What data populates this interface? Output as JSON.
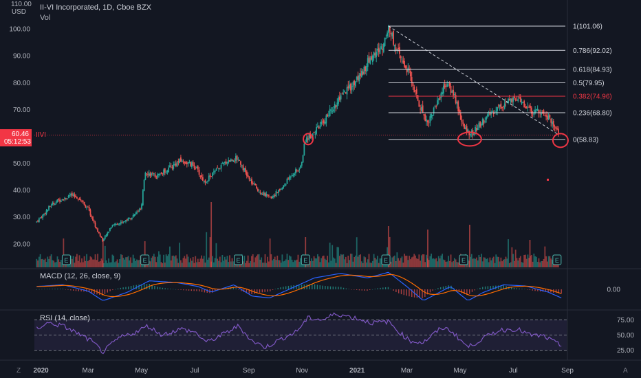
{
  "header": {
    "title": "II-VI Incorporated, 1D, Cboe BZX",
    "vol_label": "Vol",
    "currency_top": "110.00",
    "currency": "USD"
  },
  "price_tag": {
    "price": "60.46",
    "countdown": "05:12:53",
    "symbol": "IIVI"
  },
  "indicators": {
    "macd": {
      "label": "MACD (12, 26, close, 9)",
      "level_label": "0.00"
    },
    "rsi": {
      "label": "RSI (14, close)",
      "levels": [
        "75.00",
        "50.00",
        "25.00"
      ]
    }
  },
  "bottom_letters": {
    "left": "Z",
    "right": "A"
  },
  "colors": {
    "background": "#131722",
    "up": "#26a69a",
    "down": "#ef5350",
    "fib_line": "#d1d4dc",
    "fib_382": "#f23645",
    "circle": "#f23645",
    "rsi": "#7e57c2",
    "macd": "#2962ff",
    "signal": "#ff6d00"
  },
  "chart_data": {
    "type": "candlestick",
    "title": "II-VI Incorporated, 1D, Cboe BZX",
    "y_ticks": [
      "20.00",
      "30.00",
      "40.00",
      "50.00",
      "60.00",
      "70.00",
      "80.00",
      "90.00",
      "100.00"
    ],
    "ylim": [
      11,
      110
    ],
    "x_ticks": [
      "2020",
      "Mar",
      "May",
      "Jul",
      "Sep",
      "Nov",
      "2021",
      "Mar",
      "May",
      "Jul",
      "Sep"
    ],
    "price_path": [
      [
        "2020-01-01",
        28
      ],
      [
        "2020-01-10",
        31
      ],
      [
        "2020-01-20",
        35
      ],
      [
        "2020-02-01",
        37
      ],
      [
        "2020-02-10",
        38
      ],
      [
        "2020-02-20",
        37
      ],
      [
        "2020-03-01",
        33
      ],
      [
        "2020-03-10",
        26
      ],
      [
        "2020-03-18",
        21
      ],
      [
        "2020-03-28",
        27
      ],
      [
        "2020-04-08",
        28
      ],
      [
        "2020-04-20",
        30
      ],
      [
        "2020-05-01",
        33
      ],
      [
        "2020-05-05",
        47
      ],
      [
        "2020-05-18",
        45
      ],
      [
        "2020-06-01",
        48
      ],
      [
        "2020-06-15",
        51
      ],
      [
        "2020-07-01",
        49
      ],
      [
        "2020-07-12",
        43
      ],
      [
        "2020-07-25",
        47
      ],
      [
        "2020-08-08",
        51
      ],
      [
        "2020-08-20",
        52
      ],
      [
        "2020-09-01",
        44
      ],
      [
        "2020-09-12",
        40
      ],
      [
        "2020-09-25",
        37
      ],
      [
        "2020-10-10",
        41
      ],
      [
        "2020-10-20",
        46
      ],
      [
        "2020-10-30",
        48
      ],
      [
        "2020-11-05",
        59
      ],
      [
        "2020-11-20",
        63
      ],
      [
        "2020-12-05",
        70
      ],
      [
        "2020-12-20",
        76
      ],
      [
        "2021-01-05",
        82
      ],
      [
        "2021-01-20",
        90
      ],
      [
        "2021-02-01",
        93
      ],
      [
        "2021-02-08",
        101
      ],
      [
        "2021-02-20",
        90
      ],
      [
        "2021-03-03",
        84
      ],
      [
        "2021-03-15",
        72
      ],
      [
        "2021-03-25",
        65
      ],
      [
        "2021-04-05",
        73
      ],
      [
        "2021-04-15",
        80
      ],
      [
        "2021-04-25",
        75
      ],
      [
        "2021-05-05",
        63
      ],
      [
        "2021-05-15",
        61
      ],
      [
        "2021-05-28",
        66
      ],
      [
        "2021-06-10",
        70
      ],
      [
        "2021-06-25",
        73
      ],
      [
        "2021-07-10",
        73
      ],
      [
        "2021-07-22",
        69
      ],
      [
        "2021-08-02",
        70
      ],
      [
        "2021-08-15",
        65
      ],
      [
        "2021-08-25",
        60.5
      ]
    ],
    "fibonacci": [
      {
        "ratio": "1",
        "price": 101.06,
        "label": "1(101.06)"
      },
      {
        "ratio": "0.786",
        "price": 92.02,
        "label": "0.786(92.02)"
      },
      {
        "ratio": "0.618",
        "price": 84.93,
        "label": "0.618(84.93)"
      },
      {
        "ratio": "0.5",
        "price": 79.95,
        "label": "0.5(79.95)"
      },
      {
        "ratio": "0.382",
        "price": 74.96,
        "label": "0.382(74.96)"
      },
      {
        "ratio": "0.236",
        "price": 68.8,
        "label": "0.236(68.80)"
      },
      {
        "ratio": "0",
        "price": 58.83,
        "label": "0(58.83)"
      }
    ],
    "fib_highlight": "0.382",
    "current_price": 60.46,
    "trendline": [
      [
        "2021-02-08",
        101.06
      ],
      [
        "2021-08-20",
        61
      ]
    ],
    "circles": [
      [
        "2020-11-08",
        59
      ],
      [
        "2021-05-12",
        59
      ],
      [
        "2021-08-24",
        58.5
      ]
    ],
    "earnings_markers": [
      "2020-02-05",
      "2020-05-05",
      "2020-08-20",
      "2020-11-05",
      "2021-02-05",
      "2021-05-05",
      "2021-08-20"
    ],
    "earnings_label": "E",
    "macd_ylim": [
      -3.5,
      3.5
    ],
    "macd_path": [
      [
        "2020-01-01",
        0.5
      ],
      [
        "2020-02-01",
        0.8
      ],
      [
        "2020-03-01",
        -0.3
      ],
      [
        "2020-03-18",
        -2.0
      ],
      [
        "2020-04-15",
        -0.5
      ],
      [
        "2020-05-10",
        1.5
      ],
      [
        "2020-06-10",
        1.2
      ],
      [
        "2020-07-05",
        0.5
      ],
      [
        "2020-07-20",
        -0.5
      ],
      [
        "2020-08-15",
        0.8
      ],
      [
        "2020-09-05",
        -1.2
      ],
      [
        "2020-09-25",
        -1.5
      ],
      [
        "2020-10-20",
        0.2
      ],
      [
        "2020-11-15",
        2.0
      ],
      [
        "2020-12-15",
        2.8
      ],
      [
        "2021-01-15",
        2.0
      ],
      [
        "2021-02-08",
        3.0
      ],
      [
        "2021-03-01",
        0.5
      ],
      [
        "2021-03-20",
        -2.0
      ],
      [
        "2021-04-20",
        0.5
      ],
      [
        "2021-05-10",
        -2.0
      ],
      [
        "2021-05-28",
        -0.5
      ],
      [
        "2021-06-20",
        0.8
      ],
      [
        "2021-07-15",
        0.6
      ],
      [
        "2021-08-10",
        -0.5
      ],
      [
        "2021-08-25",
        -1.5
      ]
    ],
    "rsi_ylim": [
      10,
      90
    ],
    "rsi_path": [
      [
        "2020-01-01",
        60
      ],
      [
        "2020-01-15",
        70
      ],
      [
        "2020-02-01",
        65
      ],
      [
        "2020-02-15",
        55
      ],
      [
        "2020-03-05",
        40
      ],
      [
        "2020-03-18",
        22
      ],
      [
        "2020-04-05",
        45
      ],
      [
        "2020-04-25",
        55
      ],
      [
        "2020-05-08",
        65
      ],
      [
        "2020-05-25",
        50
      ],
      [
        "2020-06-15",
        60
      ],
      [
        "2020-07-01",
        55
      ],
      [
        "2020-07-15",
        38
      ],
      [
        "2020-08-01",
        50
      ],
      [
        "2020-08-20",
        65
      ],
      [
        "2020-09-05",
        40
      ],
      [
        "2020-09-20",
        30
      ],
      [
        "2020-10-10",
        45
      ],
      [
        "2020-10-25",
        55
      ],
      [
        "2020-11-08",
        78
      ],
      [
        "2020-11-25",
        75
      ],
      [
        "2020-12-10",
        85
      ],
      [
        "2021-01-01",
        78
      ],
      [
        "2021-01-20",
        70
      ],
      [
        "2021-02-08",
        72
      ],
      [
        "2021-02-20",
        55
      ],
      [
        "2021-03-05",
        40
      ],
      [
        "2021-03-20",
        38
      ],
      [
        "2021-04-10",
        62
      ],
      [
        "2021-04-20",
        58
      ],
      [
        "2021-05-10",
        30
      ],
      [
        "2021-05-28",
        45
      ],
      [
        "2021-06-15",
        58
      ],
      [
        "2021-07-05",
        60
      ],
      [
        "2021-07-20",
        50
      ],
      [
        "2021-08-05",
        48
      ],
      [
        "2021-08-25",
        32
      ]
    ]
  }
}
